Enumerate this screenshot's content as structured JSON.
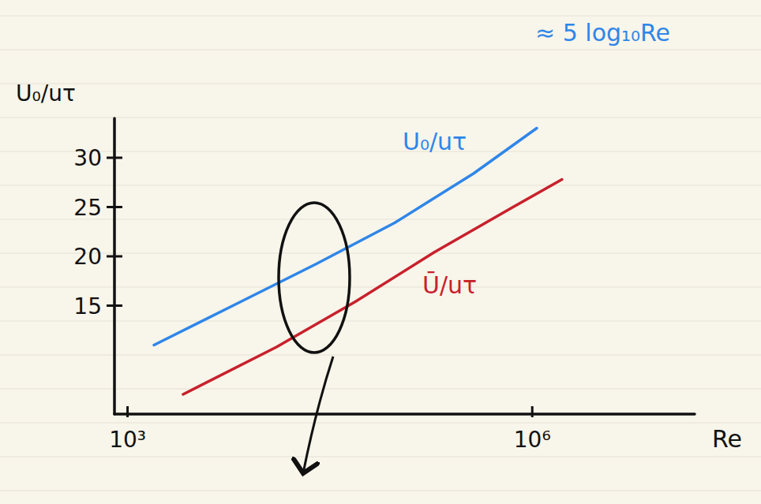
{
  "chart_data": {
    "type": "line",
    "log": "x",
    "x_label": "Re",
    "y_label": "U₀/uτ",
    "annotation": "≈ 5 log₁₀Re",
    "xlim": [
      800,
      16000000
    ],
    "xticks": [
      {
        "value": 1000,
        "label": "10³"
      },
      {
        "value": 1000000,
        "label": "10⁶"
      }
    ],
    "ylim": [
      4,
      34
    ],
    "yticks": [
      15,
      20,
      25,
      30
    ],
    "series": [
      {
        "name": "U₀/uτ",
        "color": "#2f86e8",
        "x": [
          1570,
          6460,
          24800,
          95500,
          367000,
          1080000
        ],
        "values": [
          11.0,
          15.2,
          19.2,
          23.4,
          28.4,
          33.0
        ]
      },
      {
        "name": "Ū/uτ",
        "color": "#c8202c",
        "x": [
          2580,
          12700,
          48800,
          187000,
          721000,
          1660000
        ],
        "values": [
          6.0,
          10.8,
          15.4,
          20.4,
          25.0,
          27.8
        ]
      }
    ]
  }
}
